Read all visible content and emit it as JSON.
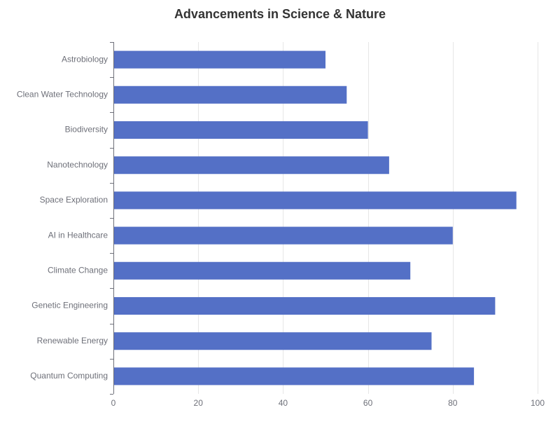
{
  "chart_data": {
    "type": "bar",
    "orientation": "horizontal",
    "title": "Advancements in Science & Nature",
    "xlabel": "",
    "ylabel": "",
    "categories": [
      "Quantum Computing",
      "Renewable Energy",
      "Genetic Engineering",
      "Climate Change",
      "AI in Healthcare",
      "Space Exploration",
      "Nanotechnology",
      "Biodiversity",
      "Clean Water Technology",
      "Astrobiology"
    ],
    "values": [
      85,
      75,
      90,
      70,
      80,
      95,
      65,
      60,
      55,
      50
    ],
    "xlim": [
      0,
      100
    ],
    "x_ticks": [
      0,
      20,
      40,
      60,
      80,
      100
    ],
    "grid": true,
    "legend": "none",
    "colors": {
      "bar": "#5470c6",
      "grid": "#e6e6e6",
      "axis": "#6e7079",
      "label": "#6e7079",
      "title": "#333333"
    }
  }
}
